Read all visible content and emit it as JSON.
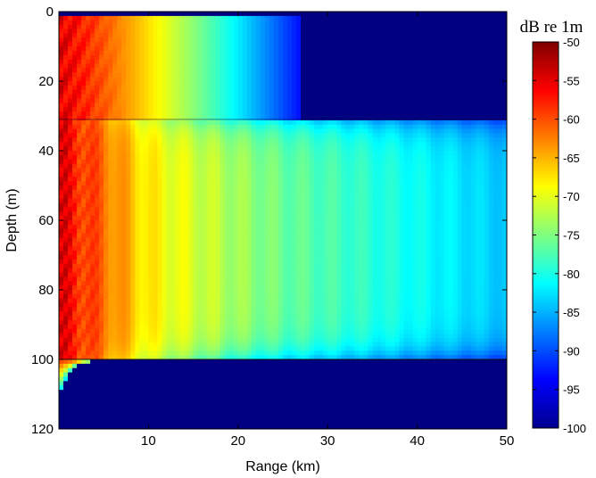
{
  "chart_data": {
    "type": "heatmap",
    "title": "",
    "xlabel": "Range (km)",
    "ylabel": "Depth (m)",
    "xlim": [
      0,
      50
    ],
    "ylim": [
      0,
      120
    ],
    "y_reversed": true,
    "x_ticks": [
      10,
      20,
      30,
      40,
      50
    ],
    "y_ticks": [
      0,
      20,
      40,
      60,
      80,
      100,
      120
    ],
    "colorbar": {
      "title": "dB re 1m",
      "colormap": "jet",
      "range": [
        -100,
        -50
      ],
      "ticks": [
        -50,
        -55,
        -60,
        -65,
        -70,
        -75,
        -80,
        -85,
        -90,
        -95,
        -100
      ]
    },
    "regions": [
      {
        "name": "upper layer",
        "depth_range": [
          0,
          31
        ],
        "value_near_source": -55,
        "value_at_25km": -90,
        "value_beyond_27km": -100
      },
      {
        "name": "main channel",
        "depth_range": [
          31,
          100
        ],
        "value_near_source": -55,
        "value_at_10km": -68,
        "value_at_25km": -76,
        "value_at_50km": -84
      },
      {
        "name": "bottom",
        "depth_range": [
          100,
          120
        ],
        "value": -100
      }
    ],
    "interfaces_depth_m": [
      31,
      100
    ]
  }
}
